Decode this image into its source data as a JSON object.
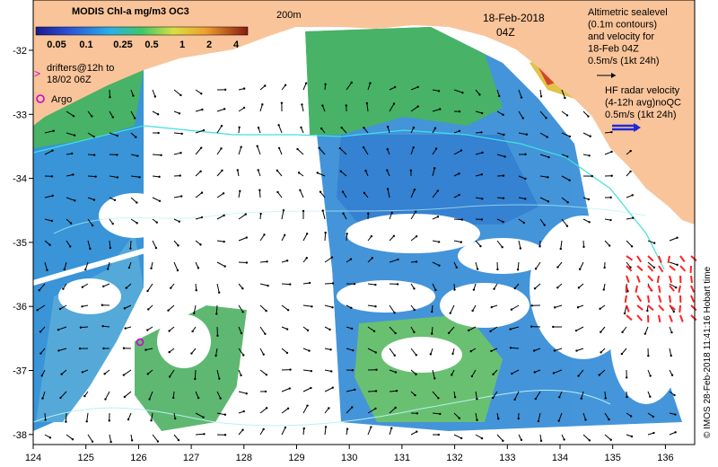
{
  "colorbar": {
    "title": "MODIS Chl-a mg/m3 OC3",
    "ticks": [
      "0.05",
      "0.1",
      "0.25",
      "0.5",
      "1",
      "2",
      "4"
    ]
  },
  "legend": {
    "drifters_line1": "drifters@12h to",
    "drifters_line2": "18/02 06Z",
    "argo": "Argo",
    "depth_contour": "200m",
    "date": "18-Feb-2018",
    "time": "04Z",
    "altimetry_lines": [
      "Altimetric sealevel",
      "(0.1m contours)",
      "and velocity for",
      "18-Feb 04Z",
      "0.5m/s (1kt 24h)"
    ],
    "hf_lines": [
      "HF radar velocity",
      "(4-12h avg)noQC",
      "0.5m/s (1kt 24h)"
    ],
    "credit": "© IMOS 28-Feb-2018 11:41:16 Hobart time"
  },
  "axes": {
    "x_ticks": [
      "124",
      "125",
      "126",
      "127",
      "128",
      "129",
      "130",
      "131",
      "132",
      "133",
      "134",
      "135",
      "136"
    ],
    "y_ticks": [
      "-32",
      "-33",
      "-34",
      "-35",
      "-36",
      "-37",
      "-38"
    ]
  },
  "colors": {
    "land": "#f9c49a",
    "ocean_blue": "#3a8fd8",
    "ocean_green": "#4fb36a",
    "contour": "#40e0e0",
    "hf_arrow": "#ff2020",
    "argo": "#d000d0"
  }
}
